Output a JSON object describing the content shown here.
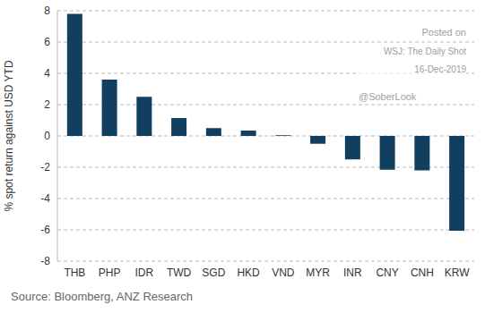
{
  "chart_data": {
    "type": "bar",
    "y_label": "% spot return against USD YTD",
    "categories": [
      "THB",
      "PHP",
      "IDR",
      "TWD",
      "SGD",
      "HKD",
      "VND",
      "MYR",
      "INR",
      "CNY",
      "CNH",
      "KRW"
    ],
    "values": [
      7.8,
      3.6,
      2.5,
      1.15,
      0.5,
      0.35,
      0.05,
      -0.5,
      -1.5,
      -2.15,
      -2.2,
      -6.05
    ],
    "color": "#123f5f",
    "ylim": [
      -8,
      8
    ],
    "yticks": [
      -8,
      -6,
      -4,
      -2,
      0,
      2,
      4,
      6,
      8
    ],
    "grid": true,
    "source": "Source: Bloomberg, ANZ Research",
    "annotations": [
      "Posted on",
      "WSJ: The Daily Shot",
      "16-Dec-2019",
      "@SoberLook"
    ]
  }
}
